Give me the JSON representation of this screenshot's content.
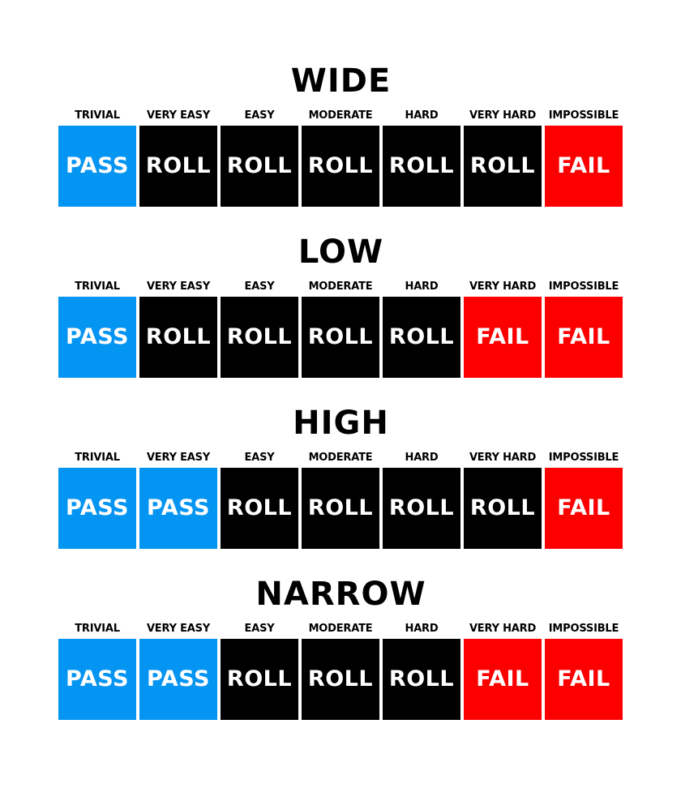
{
  "difficulties": [
    "TRIVIAL",
    "VERY EASY",
    "EASY",
    "MODERATE",
    "HARD",
    "VERY HARD",
    "IMPOSSIBLE"
  ],
  "outcomes": {
    "pass": "PASS",
    "roll": "ROLL",
    "fail": "FAIL"
  },
  "colors": {
    "pass": "#0494f2",
    "roll": "#000000",
    "fail": "#fc0000"
  },
  "sections": [
    {
      "title": "WIDE",
      "results": [
        "PASS",
        "ROLL",
        "ROLL",
        "ROLL",
        "ROLL",
        "ROLL",
        "FAIL"
      ]
    },
    {
      "title": "LOW",
      "results": [
        "PASS",
        "ROLL",
        "ROLL",
        "ROLL",
        "ROLL",
        "FAIL",
        "FAIL"
      ]
    },
    {
      "title": "HIGH",
      "results": [
        "PASS",
        "PASS",
        "ROLL",
        "ROLL",
        "ROLL",
        "ROLL",
        "FAIL"
      ]
    },
    {
      "title": "NARROW",
      "results": [
        "PASS",
        "PASS",
        "ROLL",
        "ROLL",
        "ROLL",
        "FAIL",
        "FAIL"
      ]
    }
  ]
}
